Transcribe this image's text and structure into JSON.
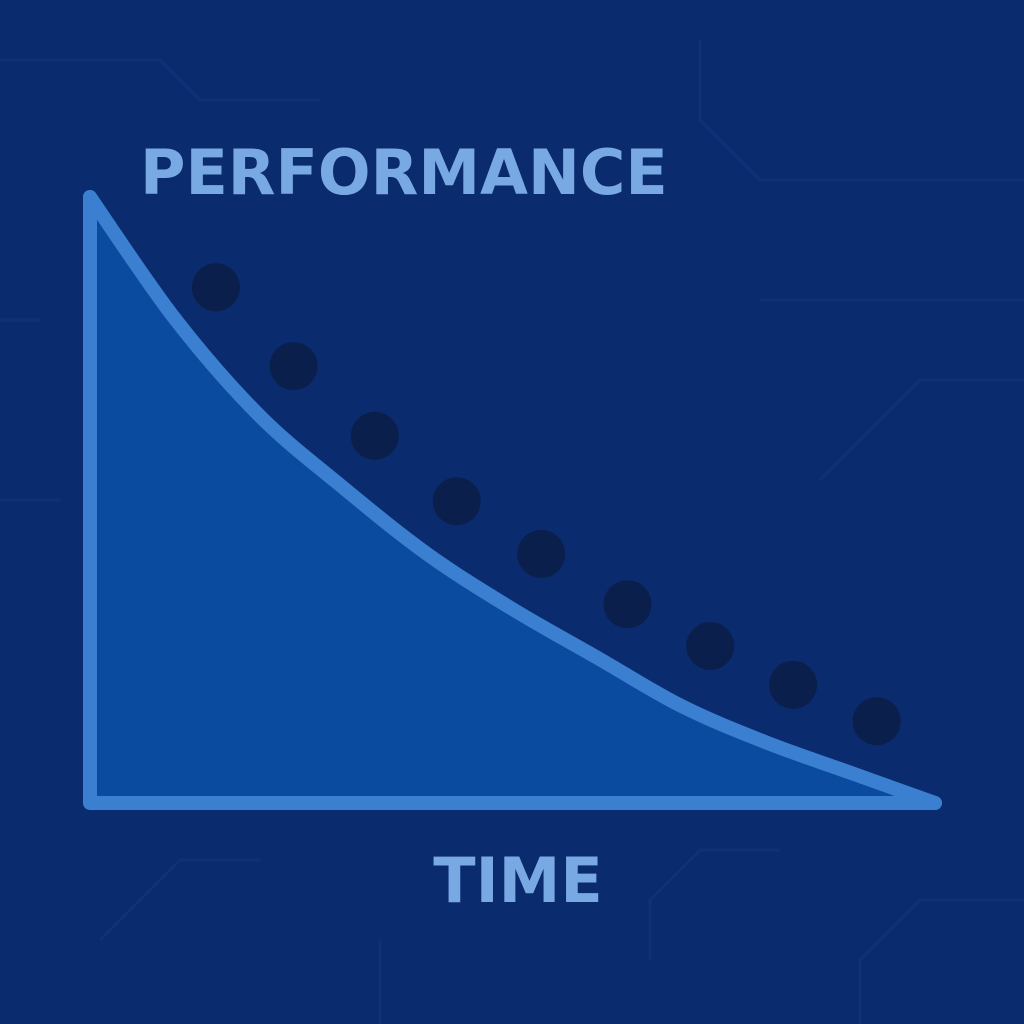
{
  "chart_data": {
    "type": "area",
    "title": "",
    "ylabel": "PERFORMANCE",
    "xlabel": "TIME",
    "xlim": [
      0,
      100
    ],
    "ylim": [
      0,
      100
    ],
    "grid": false,
    "legend": "none",
    "curve": {
      "x": [
        0,
        10,
        20,
        30,
        40,
        50,
        60,
        70,
        80,
        90,
        100
      ],
      "y": [
        100,
        80,
        64,
        52,
        41,
        32,
        24,
        16,
        10,
        5,
        0
      ]
    },
    "dots": {
      "x": [
        14.9,
        24.1,
        33.7,
        43.4,
        53.4,
        63.6,
        73.4,
        83.2,
        93.1
      ],
      "y": [
        85.1,
        72.1,
        60.6,
        49.8,
        41.1,
        32.8,
        25.9,
        19.5,
        13.5
      ]
    }
  },
  "colors": {
    "background": "#0b2b6f",
    "area_fill": "#0a4b9f",
    "line": "#3a7fd0",
    "dots": "#0b1f4d",
    "labels": "#79a9e3"
  }
}
